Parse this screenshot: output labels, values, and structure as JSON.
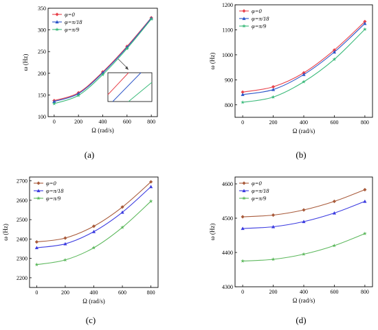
{
  "chart_data": [
    {
      "type": "line",
      "panel_label": "(a)",
      "xlabel": "Ω (rad/s)",
      "ylabel": "ω (Hz)",
      "xlim": [
        -50,
        850
      ],
      "ylim": [
        100,
        350
      ],
      "xticks": [
        0,
        200,
        400,
        600,
        800
      ],
      "yticks": [
        100,
        150,
        200,
        250,
        300,
        350
      ],
      "x": [
        0,
        200,
        400,
        600,
        800
      ],
      "series": [
        {
          "name": "φ=0",
          "color": "#e8414a",
          "marker": "diamond",
          "values": [
            137,
            155,
            203,
            262,
            328
          ]
        },
        {
          "name": "φ=π/18",
          "color": "#2b55c8",
          "marker": "triangle",
          "values": [
            135,
            153,
            201,
            260,
            327
          ]
        },
        {
          "name": "φ=π/9",
          "color": "#3aba7a",
          "marker": "star",
          "values": [
            130,
            149,
            197,
            257,
            325
          ]
        }
      ],
      "legend": "top-left",
      "grid": false,
      "inset": true
    },
    {
      "type": "line",
      "panel_label": "(b)",
      "xlabel": "Ω (rad/s)",
      "ylabel": "ω (Hz)",
      "xlim": [
        -50,
        850
      ],
      "ylim": [
        750,
        1200
      ],
      "xticks": [
        0,
        200,
        400,
        600,
        800
      ],
      "yticks": [
        800,
        900,
        1000,
        1100,
        1200
      ],
      "x": [
        0,
        200,
        400,
        600,
        800
      ],
      "series": [
        {
          "name": "φ=0",
          "color": "#e8414a",
          "marker": "diamond",
          "values": [
            851,
            872,
            928,
            1019,
            1133
          ]
        },
        {
          "name": "φ=π/18",
          "color": "#2b55c8",
          "marker": "triangle",
          "values": [
            841,
            861,
            921,
            1011,
            1125
          ]
        },
        {
          "name": "φ=π/9",
          "color": "#3aba7a",
          "marker": "star",
          "values": [
            810,
            831,
            892,
            982,
            1102
          ]
        }
      ],
      "legend": "top-left",
      "grid": false
    },
    {
      "type": "line",
      "panel_label": "(c)",
      "xlabel": "Ω (rad/s)",
      "ylabel": "ω (Hz)",
      "xlim": [
        -50,
        850
      ],
      "ylim": [
        2150,
        2720
      ],
      "xticks": [
        0,
        200,
        400,
        600,
        800
      ],
      "yticks": [
        2200,
        2300,
        2400,
        2500,
        2600,
        2700
      ],
      "x": [
        0,
        200,
        400,
        600,
        800
      ],
      "series": [
        {
          "name": "φ=0",
          "color": "#a85a3a",
          "marker": "diamond",
          "values": [
            2385,
            2405,
            2466,
            2565,
            2695
          ]
        },
        {
          "name": "φ=π/18",
          "color": "#3a3ae0",
          "marker": "triangle",
          "values": [
            2355,
            2375,
            2438,
            2538,
            2670
          ]
        },
        {
          "name": "φ=π/9",
          "color": "#5cb85c",
          "marker": "star",
          "values": [
            2268,
            2292,
            2355,
            2460,
            2595
          ]
        }
      ],
      "legend": "top-left",
      "grid": false
    },
    {
      "type": "line",
      "panel_label": "(d)",
      "xlabel": "Ω (rad/s)",
      "ylabel": "ω (Hz)",
      "xlim": [
        -50,
        850
      ],
      "ylim": [
        4300,
        4620
      ],
      "xticks": [
        0,
        200,
        400,
        600,
        800
      ],
      "yticks": [
        4300,
        4400,
        4500,
        4600
      ],
      "x": [
        0,
        200,
        400,
        600,
        800
      ],
      "series": [
        {
          "name": "φ=0",
          "color": "#a85a3a",
          "marker": "diamond",
          "values": [
            4504,
            4509,
            4524,
            4549,
            4583
          ]
        },
        {
          "name": "φ=π/18",
          "color": "#3a3ae0",
          "marker": "triangle",
          "values": [
            4470,
            4475,
            4490,
            4515,
            4549
          ]
        },
        {
          "name": "φ=π/9",
          "color": "#5cb85c",
          "marker": "star",
          "values": [
            4375,
            4380,
            4395,
            4420,
            4455
          ]
        }
      ],
      "legend": "top-left",
      "grid": false
    }
  ]
}
